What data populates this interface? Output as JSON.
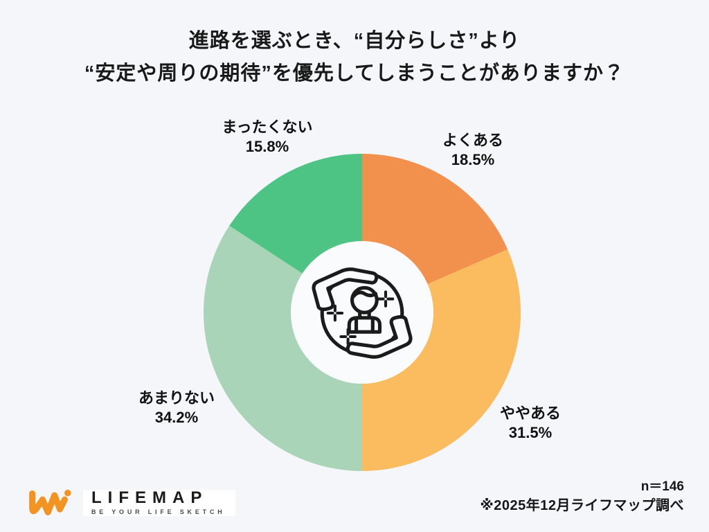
{
  "title": {
    "line1": "進路を選ぶとき、“自分らしさ”より",
    "line2": "“安定や周りの期待”を優先してしまうことがありますか？"
  },
  "chart_data": {
    "type": "pie",
    "donut": true,
    "title": "進路を選ぶとき、“自分らしさ”より“安定や周りの期待”を優先してしまうことがありますか？",
    "start_angle_deg": 0,
    "direction": "clockwise",
    "inner_radius_ratio": 0.45,
    "legend_position": "labels-around-donut",
    "sample_size": 146,
    "segments": [
      {
        "label": "よくある",
        "value": 18.5,
        "display": "18.5%",
        "color": "#F2914E"
      },
      {
        "label": "ややある",
        "value": 31.5,
        "display": "31.5%",
        "color": "#FABC5F"
      },
      {
        "label": "あまりない",
        "value": 34.2,
        "display": "34.2%",
        "color": "#A9D4B7"
      },
      {
        "label": "まったくない",
        "value": 15.8,
        "display": "15.8%",
        "color": "#4DC484"
      }
    ],
    "center_icon": "hands-holding-person"
  },
  "footer": {
    "sample_size": "n＝146",
    "source_note": "※2025年12月ライフマップ調べ",
    "logo": {
      "name": "LIFEMAP",
      "tagline": "BE YOUR LIFE SKETCH",
      "brand_color": "#F29422"
    }
  },
  "colors": {
    "background": "#F5F6FA",
    "donut_hole": "#FAFBFD",
    "text": "#191919",
    "icon_stroke": "#1b1b1b"
  }
}
